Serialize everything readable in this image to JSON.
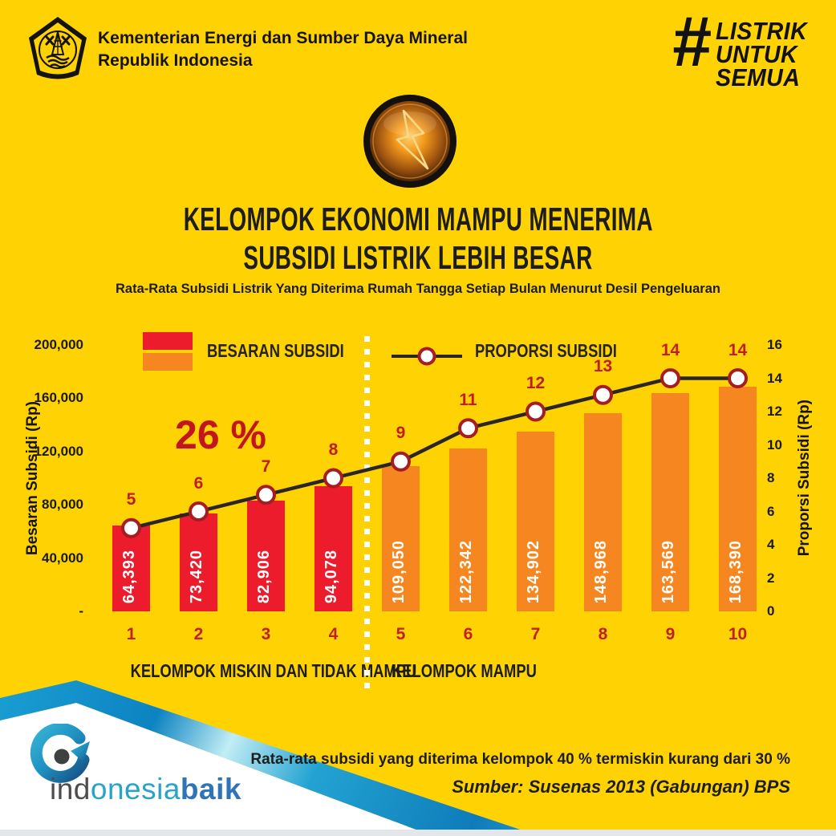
{
  "colors": {
    "background": "#FFD203",
    "bar_red": "#EC1C2C",
    "bar_orange": "#F6861F",
    "accent_dark_red": "#BE1E24",
    "line": "#2B2623",
    "marker_ring": "#A51D20",
    "marker_fill": "#FFFFFF",
    "ribbon_cyan": "#2FB3D6",
    "ribbon_blue": "#0D7FC0"
  },
  "header": {
    "ministry_line1": "Kementerian Energi dan Sumber Daya Mineral",
    "ministry_line2": "Republik Indonesia",
    "hashtag_symbol": "#",
    "hashtag_lines": {
      "0": "LISTRIK",
      "1": "UNTUK",
      "2": "SEMUA"
    }
  },
  "title": {
    "line1": "KELOMPOK EKONOMI MAMPU MENERIMA",
    "line2": "SUBSIDI LISTRIK LEBIH BESAR",
    "subtitle": "Rata-Rata Subsidi Listrik Yang Diterima Rumah Tangga Setiap Bulan Menurut Desil Pengeluaran"
  },
  "chart_data": {
    "type": "bar",
    "categories": [
      "1",
      "2",
      "3",
      "4",
      "5",
      "6",
      "7",
      "8",
      "9",
      "10"
    ],
    "series": [
      {
        "name": "BESARAN SUBSIDI",
        "type": "bar",
        "axis": "left",
        "values": [
          64393,
          73420,
          82906,
          94078,
          109050,
          122342,
          134902,
          148968,
          163569,
          168390
        ],
        "value_labels": [
          "64,393",
          "73,420",
          "82,906",
          "94,078",
          "109,050",
          "122,342",
          "134,902",
          "148,968",
          "163,569",
          "168,390"
        ]
      },
      {
        "name": "PROPORSI SUBSIDI",
        "type": "line",
        "axis": "right",
        "values": [
          5,
          6,
          7,
          8,
          9,
          11,
          12,
          13,
          14,
          14
        ]
      }
    ],
    "left_axis": {
      "title": "Besaran Subsidi (Rp)",
      "min": 0,
      "max": 200000,
      "tick_labels": [
        "200,000",
        "160,000",
        "120,000",
        "80,000",
        "40,000",
        "-"
      ]
    },
    "right_axis": {
      "title": "Proporsi Subsidi (Rp)",
      "min": 0,
      "max": 16,
      "tick_labels": [
        "16",
        "14",
        "12",
        "10",
        "8",
        "6",
        "4",
        "2",
        "0"
      ]
    },
    "annotation": "26 %",
    "legend": {
      "bar": "BESARAN SUBSIDI",
      "line": "PROPORSI SUBSIDI"
    },
    "groups": {
      "poor": {
        "label": "KELOMPOK MISKIN DAN TIDAK MAMPU",
        "deciles": "1-4",
        "bar_color": "#EC1C2C"
      },
      "able": {
        "label": "KELOMPOK MAMPU",
        "deciles": "5-10",
        "bar_color": "#F6861F"
      }
    },
    "grid": false,
    "legend_position": "top"
  },
  "footer": {
    "note": "Rata-rata subsidi yang diterima kelompok 40 % termiskin kurang dari 30 %",
    "source": "Sumber: Susenas 2013 (Gabungan) BPS",
    "brand_ind": "ind",
    "brand_onesia": "onesia",
    "brand_baik": "baik"
  }
}
